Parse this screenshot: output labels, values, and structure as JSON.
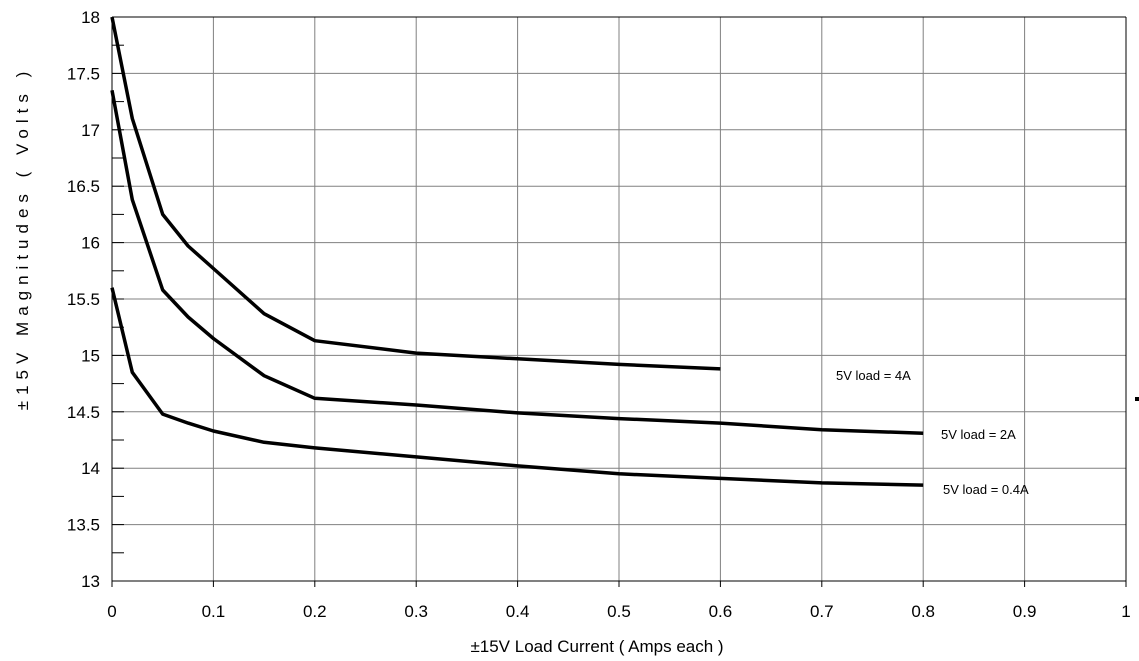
{
  "chart_data": {
    "type": "line",
    "title": "",
    "xlabel": "±15V Load Current ( Amps each )",
    "ylabel": "±15V Magnitudes ( Volts )",
    "xlim": [
      0,
      1
    ],
    "ylim": [
      13,
      18
    ],
    "x_ticks": [
      "0",
      "0.1",
      "0.2",
      "0.3",
      "0.4",
      "0.5",
      "0.6",
      "0.7",
      "0.8",
      "0.9",
      "1"
    ],
    "y_ticks": [
      "13",
      "13.5",
      "14",
      "14.5",
      "15",
      "15.5",
      "16",
      "16.5",
      "17",
      "17.5",
      "18"
    ],
    "grid": true,
    "legend": "inline",
    "series": [
      {
        "name": "5V load = 4A",
        "x": [
          0,
          0.02,
          0.05,
          0.075,
          0.1,
          0.15,
          0.2,
          0.3,
          0.4,
          0.5,
          0.6
        ],
        "y": [
          18.0,
          17.1,
          16.25,
          15.97,
          15.77,
          15.37,
          15.13,
          15.02,
          14.97,
          14.92,
          14.88
        ]
      },
      {
        "name": "5V load = 2A",
        "x": [
          0,
          0.02,
          0.05,
          0.075,
          0.1,
          0.15,
          0.2,
          0.3,
          0.4,
          0.5,
          0.6,
          0.7,
          0.8
        ],
        "y": [
          17.35,
          16.38,
          15.58,
          15.34,
          15.15,
          14.82,
          14.62,
          14.56,
          14.49,
          14.44,
          14.4,
          14.34,
          14.31
        ]
      },
      {
        "name": "5V load = 0.4A",
        "x": [
          0,
          0.02,
          0.05,
          0.075,
          0.1,
          0.15,
          0.2,
          0.3,
          0.4,
          0.5,
          0.6,
          0.7,
          0.8
        ],
        "y": [
          15.6,
          14.85,
          14.48,
          14.4,
          14.33,
          14.23,
          14.18,
          14.1,
          14.02,
          13.95,
          13.91,
          13.87,
          13.85
        ]
      }
    ]
  }
}
